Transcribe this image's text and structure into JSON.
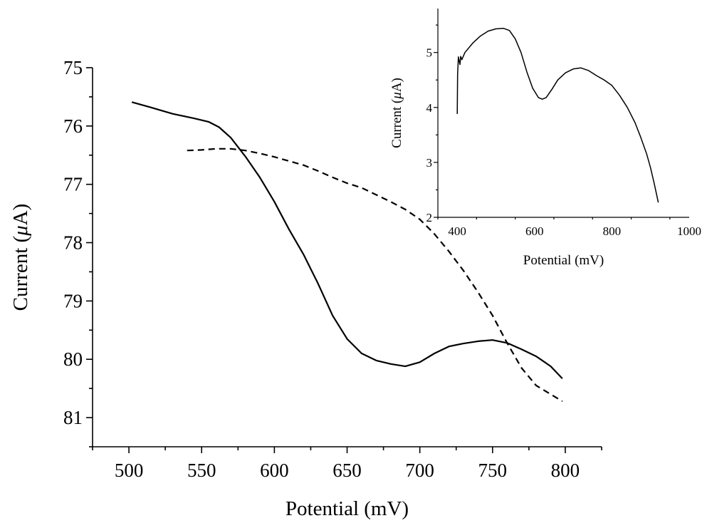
{
  "chart_data": [
    {
      "id": "main",
      "type": "line",
      "xlabel": "Potential (mV)",
      "ylabel_prefix": "Current (",
      "ylabel_unit_greek": "μ",
      "ylabel_suffix": "A)",
      "xlim": [
        475,
        825
      ],
      "ylim": [
        81.5,
        75
      ],
      "y_inverted": true,
      "xticks": [
        500,
        550,
        600,
        650,
        700,
        750,
        800
      ],
      "yticks": [
        75,
        76,
        77,
        78,
        79,
        80,
        81
      ],
      "grid": false,
      "series": [
        {
          "style": "solid",
          "color": "#000000",
          "points": [
            [
              502,
              75.59
            ],
            [
              515,
              75.68
            ],
            [
              530,
              75.79
            ],
            [
              545,
              75.87
            ],
            [
              555,
              75.93
            ],
            [
              562,
              76.02
            ],
            [
              570,
              76.2
            ],
            [
              580,
              76.52
            ],
            [
              590,
              76.88
            ],
            [
              600,
              77.3
            ],
            [
              610,
              77.77
            ],
            [
              620,
              78.2
            ],
            [
              630,
              78.7
            ],
            [
              640,
              79.25
            ],
            [
              650,
              79.65
            ],
            [
              660,
              79.9
            ],
            [
              670,
              80.02
            ],
            [
              680,
              80.08
            ],
            [
              690,
              80.12
            ],
            [
              700,
              80.05
            ],
            [
              710,
              79.9
            ],
            [
              720,
              79.78
            ],
            [
              730,
              79.73
            ],
            [
              740,
              79.69
            ],
            [
              750,
              79.67
            ],
            [
              760,
              79.72
            ],
            [
              770,
              79.83
            ],
            [
              780,
              79.95
            ],
            [
              790,
              80.12
            ],
            [
              798,
              80.33
            ]
          ]
        },
        {
          "style": "dashed",
          "color": "#000000",
          "points": [
            [
              540,
              76.42
            ],
            [
              550,
              76.41
            ],
            [
              560,
              76.39
            ],
            [
              570,
              76.39
            ],
            [
              580,
              76.42
            ],
            [
              590,
              76.47
            ],
            [
              600,
              76.53
            ],
            [
              610,
              76.6
            ],
            [
              620,
              76.67
            ],
            [
              630,
              76.77
            ],
            [
              640,
              76.88
            ],
            [
              650,
              76.98
            ],
            [
              660,
              77.06
            ],
            [
              670,
              77.18
            ],
            [
              680,
              77.3
            ],
            [
              690,
              77.43
            ],
            [
              700,
              77.6
            ],
            [
              710,
              77.85
            ],
            [
              720,
              78.15
            ],
            [
              730,
              78.48
            ],
            [
              740,
              78.85
            ],
            [
              750,
              79.25
            ],
            [
              760,
              79.72
            ],
            [
              770,
              80.15
            ],
            [
              780,
              80.45
            ],
            [
              790,
              80.6
            ],
            [
              798,
              80.72
            ]
          ]
        }
      ]
    },
    {
      "id": "inset",
      "type": "line",
      "xlabel": "Potential (mV)",
      "ylabel_prefix": "Current (",
      "ylabel_unit_greek": "μ",
      "ylabel_suffix": "A)",
      "xlim": [
        350,
        1000
      ],
      "ylim": [
        2,
        5.8
      ],
      "xticks": [
        400,
        600,
        800,
        1000
      ],
      "yticks": [
        2,
        3,
        4,
        5
      ],
      "grid": false,
      "series": [
        {
          "style": "solid",
          "color": "#000000",
          "points": [
            [
              400,
              3.88
            ],
            [
              401,
              4.6
            ],
            [
              403,
              4.92
            ],
            [
              405,
              4.85
            ],
            [
              407,
              4.78
            ],
            [
              409,
              4.93
            ],
            [
              412,
              4.87
            ],
            [
              420,
              5.0
            ],
            [
              440,
              5.17
            ],
            [
              460,
              5.3
            ],
            [
              480,
              5.39
            ],
            [
              500,
              5.43
            ],
            [
              520,
              5.44
            ],
            [
              535,
              5.4
            ],
            [
              550,
              5.25
            ],
            [
              565,
              5.0
            ],
            [
              580,
              4.65
            ],
            [
              595,
              4.35
            ],
            [
              610,
              4.18
            ],
            [
              620,
              4.15
            ],
            [
              630,
              4.18
            ],
            [
              645,
              4.33
            ],
            [
              660,
              4.5
            ],
            [
              680,
              4.63
            ],
            [
              700,
              4.7
            ],
            [
              720,
              4.72
            ],
            [
              740,
              4.67
            ],
            [
              760,
              4.58
            ],
            [
              780,
              4.5
            ],
            [
              800,
              4.4
            ],
            [
              820,
              4.22
            ],
            [
              840,
              4.0
            ],
            [
              860,
              3.72
            ],
            [
              875,
              3.45
            ],
            [
              890,
              3.15
            ],
            [
              900,
              2.9
            ],
            [
              910,
              2.6
            ],
            [
              920,
              2.27
            ]
          ]
        }
      ]
    }
  ]
}
